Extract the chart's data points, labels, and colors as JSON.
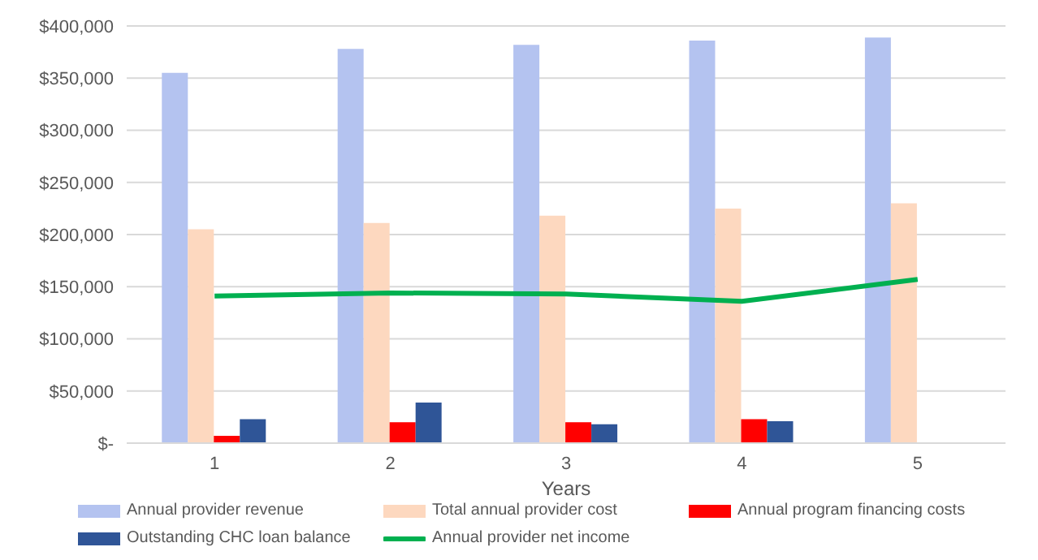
{
  "chart_data": {
    "type": "bar",
    "xlabel": "Years",
    "categories": [
      "1",
      "2",
      "3",
      "4",
      "5"
    ],
    "series": [
      {
        "name": "Annual provider revenue",
        "color": "#b4c3f0",
        "values": [
          355000,
          378000,
          382000,
          386000,
          389000
        ]
      },
      {
        "name": "Total annual provider cost",
        "color": "#fdd8bf",
        "values": [
          205000,
          211000,
          218000,
          225000,
          230000
        ]
      },
      {
        "name": "Annual program financing costs",
        "color": "#ff0000",
        "values": [
          7000,
          20000,
          20000,
          23000,
          null
        ]
      },
      {
        "name": "Outstanding CHC loan balance",
        "color": "#2f5597",
        "values": [
          23000,
          39000,
          18000,
          21000,
          null
        ]
      },
      {
        "name": "Annual provider net income",
        "type": "line",
        "color": "#00b050",
        "values": [
          141000,
          144000,
          143000,
          136000,
          157000
        ]
      }
    ],
    "ylim": [
      0,
      400000
    ],
    "yticks": [
      {
        "value": 0,
        "label": "$-"
      },
      {
        "value": 50000,
        "label": "$50,000"
      },
      {
        "value": 100000,
        "label": "$100,000"
      },
      {
        "value": 150000,
        "label": "$150,000"
      },
      {
        "value": 200000,
        "label": "$200,000"
      },
      {
        "value": 250000,
        "label": "$250,000"
      },
      {
        "value": 300000,
        "label": "$300,000"
      },
      {
        "value": 350000,
        "label": "$350,000"
      },
      {
        "value": 400000,
        "label": "$400,000"
      }
    ],
    "grid": "y",
    "legend": "bottom",
    "marker": "none"
  }
}
